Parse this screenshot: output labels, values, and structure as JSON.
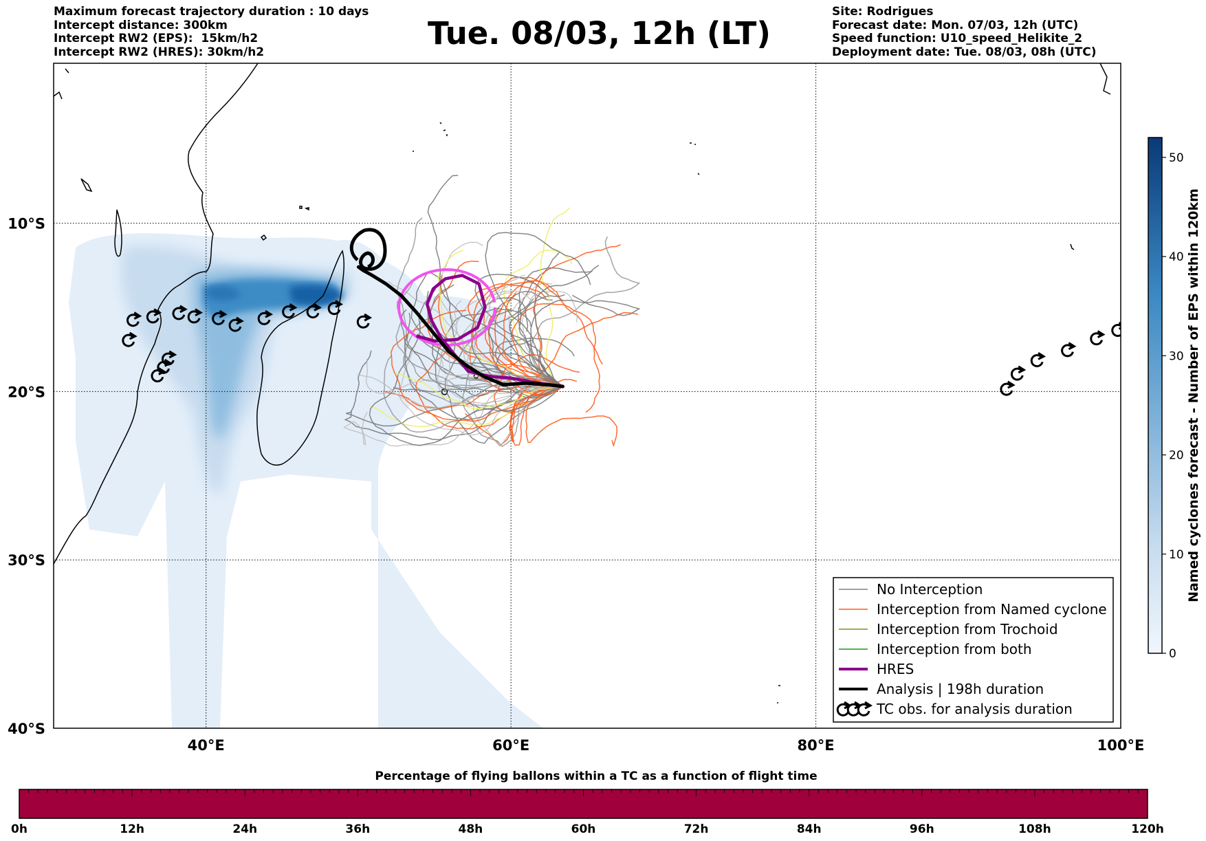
{
  "header_left": {
    "line1": "Maximum forecast trajectory duration : 10 days",
    "line2": "Intercept distance: 300km",
    "line3": "Intercept RW2 (EPS):  15km/h2",
    "line4": "Intercept RW2 (HRES): 30km/h2"
  },
  "title": "Tue. 08/03, 12h (LT)",
  "header_right": {
    "line1": "Site: Rodrigues",
    "line2": "Forecast date: Mon. 07/03, 12h (UTC)",
    "line3": "Speed function: U10_speed_Helikite_2",
    "line4": "Deployment date: Tue. 08/03, 08h (UTC)"
  },
  "map": {
    "lon_range": [
      30,
      100
    ],
    "lat_range": [
      -40,
      -0.5
    ],
    "lon_ticks": [
      {
        "value": 40,
        "label": "40°E"
      },
      {
        "value": 60,
        "label": "60°E"
      },
      {
        "value": 80,
        "label": "80°E"
      },
      {
        "value": 100,
        "label": "100°E"
      }
    ],
    "lat_ticks": [
      {
        "value": -10,
        "label": "10°S"
      },
      {
        "value": -20,
        "label": "20°S"
      },
      {
        "value": -30,
        "label": "30°S"
      },
      {
        "value": -40,
        "label": "40°S"
      }
    ],
    "site": {
      "name": "Rodrigues",
      "lon": 63.4,
      "lat": -19.7
    },
    "analysis_track": [
      [
        63.4,
        -19.7
      ],
      [
        62.5,
        -19.6
      ],
      [
        61,
        -19.5
      ],
      [
        59.5,
        -19.6
      ],
      [
        58.2,
        -19.1
      ],
      [
        57,
        -18.4
      ],
      [
        55.9,
        -17.6
      ],
      [
        54.8,
        -16.4
      ],
      [
        53.8,
        -15.3
      ],
      [
        52.8,
        -14.3
      ],
      [
        51.8,
        -13.6
      ],
      [
        50.9,
        -13.1
      ],
      [
        50.3,
        -12.8
      ],
      [
        50.0,
        -12.6
      ]
    ],
    "hres_track": [
      [
        63.4,
        -19.7
      ],
      [
        61.8,
        -19.5
      ],
      [
        60,
        -19.2
      ],
      [
        58.6,
        -19.1
      ],
      [
        57.2,
        -18.8
      ],
      [
        56.2,
        -17.7
      ],
      [
        55.4,
        -16.8
      ],
      [
        54.8,
        -15.8
      ],
      [
        54.5,
        -14.8
      ],
      [
        54.9,
        -13.9
      ],
      [
        55.7,
        -13.3
      ],
      [
        56.8,
        -13.1
      ],
      [
        57.9,
        -13.6
      ],
      [
        58.3,
        -15
      ],
      [
        57.8,
        -16.2
      ],
      [
        56.5,
        -16.9
      ],
      [
        55,
        -17
      ],
      [
        53.8,
        -16.7
      ]
    ],
    "tc_obs_left": [
      [
        34.9,
        -17
      ],
      [
        35.2,
        -15.8
      ],
      [
        36.5,
        -15.6
      ],
      [
        38.2,
        -15.4
      ],
      [
        39.2,
        -15.6
      ],
      [
        40.8,
        -15.7
      ],
      [
        41.9,
        -16.1
      ],
      [
        43.8,
        -15.7
      ],
      [
        45.4,
        -15.3
      ],
      [
        47,
        -15.3
      ],
      [
        48.4,
        -15.1
      ],
      [
        50.3,
        -15.9
      ],
      [
        37.5,
        -18.1
      ],
      [
        37.2,
        -18.6
      ],
      [
        36.8,
        -19.1
      ]
    ],
    "tc_obs_right": [
      [
        92.5,
        -19.9
      ],
      [
        93.2,
        -19.0
      ],
      [
        94.5,
        -18.2
      ],
      [
        96.5,
        -17.6
      ],
      [
        98.4,
        -16.9
      ],
      [
        99.8,
        -16.4
      ]
    ],
    "hres_loop_color": "#ee55ee",
    "hres_color": "#8b008b",
    "analysis_color": "#000000"
  },
  "legend": {
    "items": [
      {
        "label": "No Interception",
        "color": "#808080",
        "width": 1.5
      },
      {
        "label": "Interception from Named cyclone",
        "color": "#ff5a1a",
        "width": 1.5
      },
      {
        "label": "Interception from Trochoid",
        "color": "#8b8a1a",
        "width": 1.5
      },
      {
        "label": "Interception from both",
        "color": "#1a9a1a",
        "width": 1.5
      },
      {
        "label": "HRES",
        "color": "#8b008b",
        "width": 4
      },
      {
        "label": "Analysis | 198h duration",
        "color": "#000000",
        "width": 4
      },
      {
        "label": "TC obs. for analysis duration",
        "color": "#000000",
        "width": 0
      }
    ]
  },
  "colorbar": {
    "title": "Named cyclones forecast - Number of EPS within 120km",
    "ticks": [
      "0",
      "10",
      "20",
      "30",
      "40",
      "50"
    ],
    "min": 0,
    "max": 52,
    "color_low": "#e6eff9",
    "color_high": "#08306b"
  },
  "time_bar": {
    "title": "Percentage of flying ballons within a TC as a function of flight time",
    "color": "#a0003c",
    "ticks": [
      "0h",
      "12h",
      "24h",
      "36h",
      "48h",
      "60h",
      "72h",
      "84h",
      "96h",
      "108h",
      "120h"
    ]
  }
}
